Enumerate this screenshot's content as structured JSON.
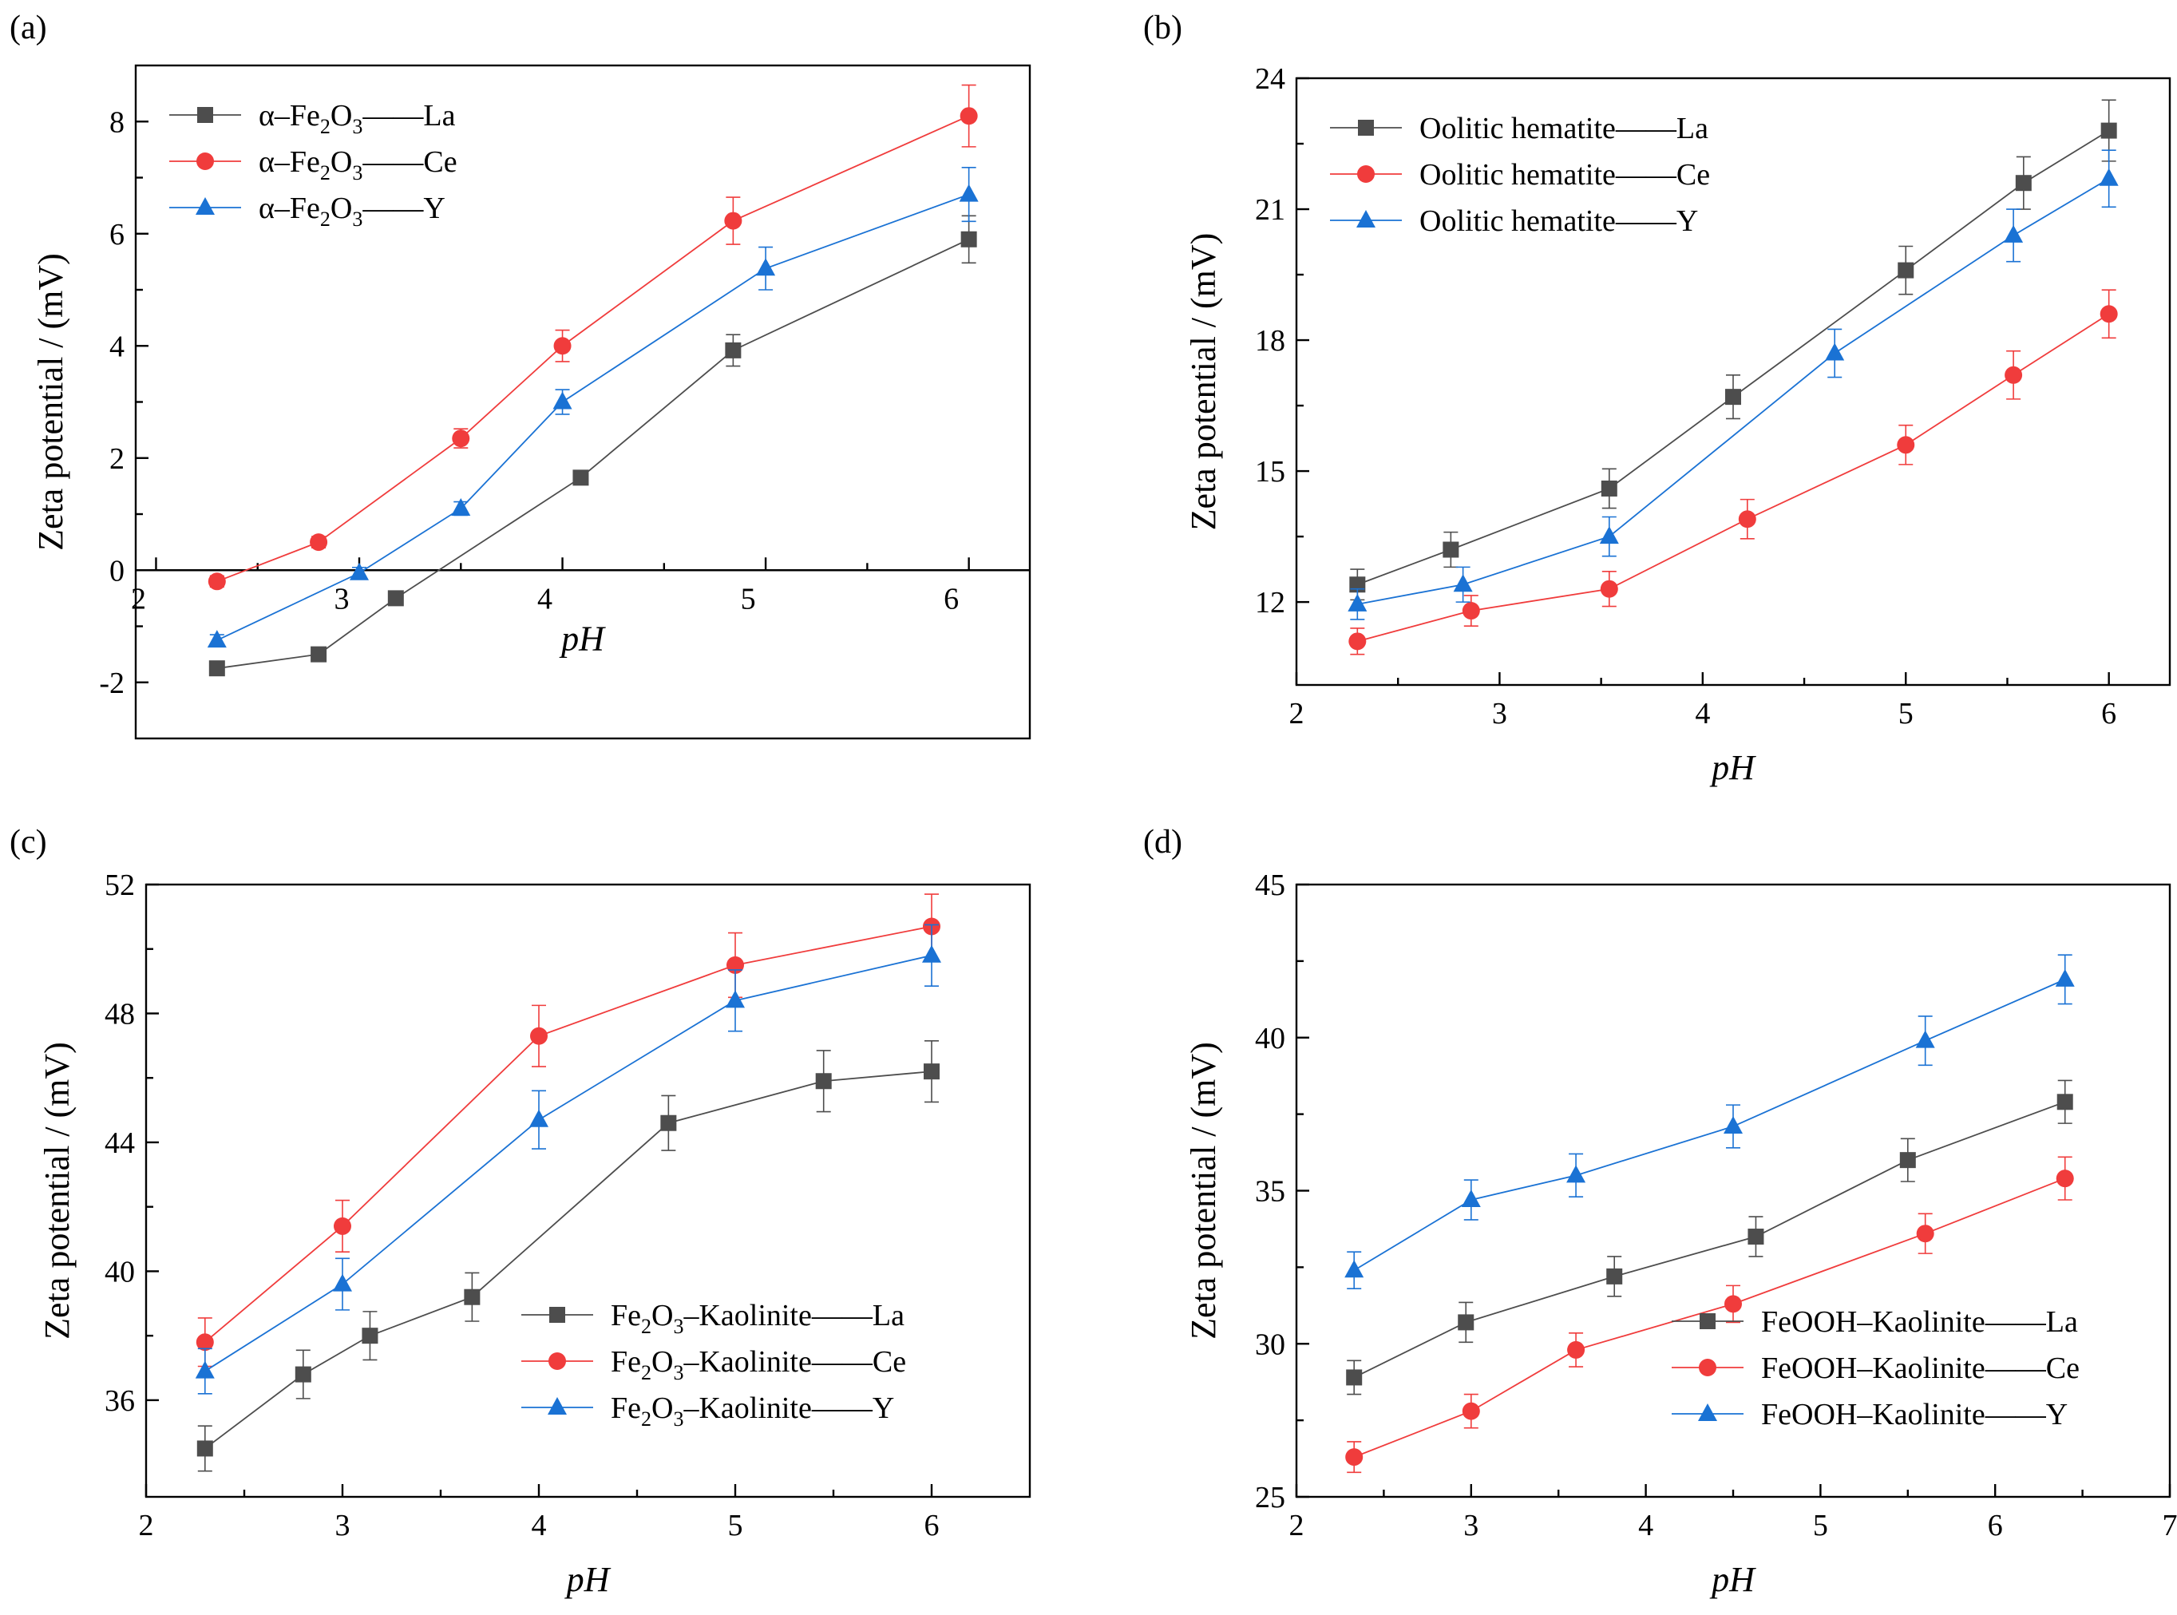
{
  "figure": {
    "panel_count": 4
  },
  "chart_data": [
    {
      "type": "line",
      "panel_label": "(a)",
      "xlabel": "pH",
      "ylabel": "Zeta potential / (mV)",
      "xlim": [
        1.9,
        6.3
      ],
      "ylim": [
        -3,
        9
      ],
      "xticks": [
        2,
        3,
        4,
        5,
        6
      ],
      "yticks": [
        -2,
        0,
        2,
        4,
        6,
        8
      ],
      "x_axis_at_zero": true,
      "legend_position": "top-left",
      "series": [
        {
          "name": "La",
          "legend_parts": [
            "α–Fe",
            "2",
            "O",
            "3",
            "——La"
          ],
          "color": "#4d4d4d",
          "marker": "square",
          "x": [
            2.3,
            2.8,
            3.18,
            4.09,
            4.84,
            6.0
          ],
          "y": [
            -1.75,
            -1.5,
            -0.5,
            1.65,
            3.92,
            5.9
          ],
          "err": [
            0.1,
            0.1,
            0.1,
            0.12,
            0.28,
            0.42
          ]
        },
        {
          "name": "Ce",
          "legend_parts": [
            "α–Fe",
            "2",
            "O",
            "3",
            "——Ce"
          ],
          "color": "#f03c3c",
          "marker": "circle",
          "x": [
            2.3,
            2.8,
            3.5,
            4.0,
            4.84,
            6.0
          ],
          "y": [
            -0.2,
            0.5,
            2.35,
            4.0,
            6.23,
            8.1
          ],
          "err": [
            0.1,
            0.1,
            0.17,
            0.28,
            0.42,
            0.55
          ]
        },
        {
          "name": "Y",
          "legend_parts": [
            "α–Fe",
            "2",
            "O",
            "3",
            "——Y"
          ],
          "color": "#1a72d4",
          "marker": "triangle",
          "x": [
            2.3,
            3.0,
            3.5,
            4.0,
            5.0,
            6.0
          ],
          "y": [
            -1.25,
            -0.05,
            1.1,
            3.0,
            5.38,
            6.7
          ],
          "err": [
            0.1,
            0.1,
            0.12,
            0.22,
            0.38,
            0.48
          ]
        }
      ]
    },
    {
      "type": "line",
      "panel_label": "(b)",
      "xlabel": "pH",
      "ylabel": "Zeta potential / (mV)",
      "xlim": [
        2,
        6.3
      ],
      "ylim": [
        10.1,
        24
      ],
      "xticks": [
        2,
        3,
        4,
        5,
        6
      ],
      "yticks": [
        12,
        15,
        18,
        21,
        24
      ],
      "x_axis_at_zero": false,
      "legend_position": "top-left",
      "series": [
        {
          "name": "La",
          "legend_parts": [
            "Oolitic hematite",
            "",
            "",
            "",
            "——La"
          ],
          "color": "#4d4d4d",
          "marker": "square",
          "x": [
            2.3,
            2.76,
            3.54,
            4.15,
            5.0,
            5.58,
            6.0
          ],
          "y": [
            12.4,
            13.2,
            14.6,
            16.7,
            19.6,
            21.6,
            22.8
          ],
          "err": [
            0.35,
            0.4,
            0.45,
            0.5,
            0.55,
            0.6,
            0.7
          ]
        },
        {
          "name": "Ce",
          "legend_parts": [
            "Oolitic hematite",
            "",
            "",
            "",
            "——Ce"
          ],
          "color": "#f03c3c",
          "marker": "circle",
          "x": [
            2.3,
            2.86,
            3.54,
            4.22,
            5.0,
            5.53,
            6.0
          ],
          "y": [
            11.1,
            11.8,
            12.3,
            13.9,
            15.6,
            17.2,
            18.6
          ],
          "err": [
            0.3,
            0.35,
            0.4,
            0.45,
            0.45,
            0.55,
            0.55
          ]
        },
        {
          "name": "Y",
          "legend_parts": [
            "Oolitic hematite",
            "",
            "",
            "",
            "——Y"
          ],
          "color": "#1a72d4",
          "marker": "triangle",
          "x": [
            2.3,
            2.82,
            3.54,
            4.65,
            5.53,
            6.0
          ],
          "y": [
            11.95,
            12.4,
            13.5,
            17.7,
            20.4,
            21.7
          ],
          "err": [
            0.35,
            0.4,
            0.45,
            0.55,
            0.6,
            0.65
          ]
        }
      ]
    },
    {
      "type": "line",
      "panel_label": "(c)",
      "xlabel": "pH",
      "ylabel": "Zeta potential / (mV)",
      "xlim": [
        2,
        6.5
      ],
      "ylim": [
        33,
        52
      ],
      "xticks": [
        2,
        3,
        4,
        5,
        6
      ],
      "yticks": [
        36,
        40,
        44,
        48,
        52
      ],
      "x_axis_at_zero": false,
      "legend_position": "bottom-right",
      "series": [
        {
          "name": "La",
          "legend_parts": [
            "Fe",
            "2",
            "O",
            "3",
            "–Kaolinite——La"
          ],
          "color": "#4d4d4d",
          "marker": "square",
          "x": [
            2.3,
            2.8,
            3.14,
            3.66,
            4.66,
            5.45,
            6.0
          ],
          "y": [
            34.5,
            36.8,
            38.0,
            39.2,
            44.6,
            45.9,
            46.2
          ],
          "err": [
            0.7,
            0.75,
            0.75,
            0.75,
            0.85,
            0.95,
            0.95
          ]
        },
        {
          "name": "Ce",
          "legend_parts": [
            "Fe",
            "2",
            "O",
            "3",
            "–Kaolinite——Ce"
          ],
          "color": "#f03c3c",
          "marker": "circle",
          "x": [
            2.3,
            3.0,
            4.0,
            5.0,
            6.0
          ],
          "y": [
            37.8,
            41.4,
            47.3,
            49.5,
            50.7
          ],
          "err": [
            0.75,
            0.8,
            0.95,
            1.0,
            1.0
          ]
        },
        {
          "name": "Y",
          "legend_parts": [
            "Fe",
            "2",
            "O",
            "3",
            "–Kaolinite——Y"
          ],
          "color": "#1a72d4",
          "marker": "triangle",
          "x": [
            2.3,
            3.0,
            4.0,
            5.0,
            6.0
          ],
          "y": [
            36.9,
            39.6,
            44.7,
            48.4,
            49.8
          ],
          "err": [
            0.7,
            0.8,
            0.9,
            0.95,
            0.95
          ]
        }
      ]
    },
    {
      "type": "line",
      "panel_label": "(d)",
      "xlabel": "pH",
      "ylabel": "Zeta potential / (mV)",
      "xlim": [
        2,
        7
      ],
      "ylim": [
        25,
        45
      ],
      "xticks": [
        2,
        3,
        4,
        5,
        6,
        7
      ],
      "yticks": [
        25,
        30,
        35,
        40,
        45
      ],
      "x_axis_at_zero": false,
      "legend_position": "bottom-right",
      "series": [
        {
          "name": "La",
          "legend_parts": [
            "FeOOH–Kaolinite——La",
            "",
            "",
            "",
            ""
          ],
          "color": "#4d4d4d",
          "marker": "square",
          "x": [
            2.33,
            2.97,
            3.82,
            4.63,
            5.5,
            6.4
          ],
          "y": [
            28.9,
            30.7,
            32.2,
            33.5,
            36.0,
            37.9
          ],
          "err": [
            0.55,
            0.65,
            0.65,
            0.65,
            0.7,
            0.7
          ]
        },
        {
          "name": "Ce",
          "legend_parts": [
            "FeOOH–Kaolinite——Ce",
            "",
            "",
            "",
            ""
          ],
          "color": "#f03c3c",
          "marker": "circle",
          "x": [
            2.33,
            3.0,
            3.6,
            4.5,
            5.6,
            6.4
          ],
          "y": [
            26.3,
            27.8,
            29.8,
            31.3,
            33.6,
            35.4
          ],
          "err": [
            0.5,
            0.55,
            0.55,
            0.6,
            0.65,
            0.7
          ]
        },
        {
          "name": "Y",
          "legend_parts": [
            "FeOOH–Kaolinite——Y",
            "",
            "",
            "",
            ""
          ],
          "color": "#1a72d4",
          "marker": "triangle",
          "x": [
            2.33,
            3.0,
            3.6,
            4.5,
            5.6,
            6.4
          ],
          "y": [
            32.4,
            34.7,
            35.5,
            37.1,
            39.9,
            41.9
          ],
          "err": [
            0.6,
            0.65,
            0.7,
            0.7,
            0.8,
            0.8
          ]
        }
      ]
    }
  ]
}
